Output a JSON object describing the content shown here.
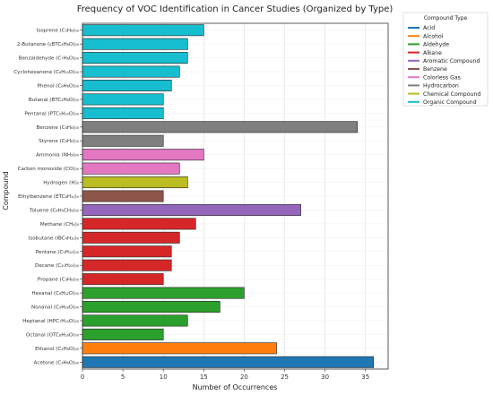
{
  "chart_data": {
    "type": "bar",
    "orientation": "horizontal",
    "title": "Frequency of VOC Identification in Cancer Studies (Organized by Type)",
    "xlabel": "Number of Occurrences",
    "ylabel": "Compound",
    "xlim": [
      0,
      37.8
    ],
    "xticks": [
      "0",
      "5",
      "10",
      "15",
      "20",
      "25",
      "30",
      "35"
    ],
    "grid": true,
    "legend_title": "Compound Type",
    "legend_position": "top-right",
    "legend": [
      {
        "name": "Acid",
        "color": "#1f77b4"
      },
      {
        "name": "Alcohol",
        "color": "#ff7f0e"
      },
      {
        "name": "Aldehyde",
        "color": "#2ca02c"
      },
      {
        "name": "Alkane",
        "color": "#d62728"
      },
      {
        "name": "Aromatic Compound",
        "color": "#9467bd"
      },
      {
        "name": "Benzene",
        "color": "#8c564b"
      },
      {
        "name": "Colorless Gas",
        "color": "#e377c2"
      },
      {
        "name": "Hydrocarbon",
        "color": "#7f7f7f"
      },
      {
        "name": "Chemical Compound",
        "color": "#bcbd22"
      },
      {
        "name": "Organic Compound",
        "color": "#17becf"
      }
    ],
    "categories": [
      "Isoprene (C₅H₈)₀₀",
      "2-Butanone (₂BTC₄H₈O)₀₀",
      "Benzaldehyde (C₇H₆O)₀₀",
      "Cyclohexanone (C₆H₁₀O)₀₀",
      "Phenol (C₆H₆O)₀₀",
      "Butanal (BTC₄H₈O)₀₀",
      "Pentanal (PTC₅H₁₀O)₀₀",
      "Benzene (C₆H₆)₀₀",
      "Styrene (C₈H₈)₀₀",
      "Ammonia (NH₃)₀₀",
      "Carbon monoxide (CO)₀₀",
      "Hydrogen (H)₂",
      "Ethylbenzene (ETC₈H₁₀)₀",
      "Toluene (C₆H₅CH₃)₀₀",
      "Methane (CH₄)₀",
      "Isobutane (IBC₄H₁₀)₀",
      "Pentane (C₅H₁₂)₀₀",
      "Decane (C₁₀H₂₂)₀₀",
      "Propane (C₃H₈)₀₀",
      "Hexanal (C₆H₁₂O)₀₀",
      "Nonanal (C₉H₁₈O)₀₀",
      "Heptanal (HPC₇H₁₄O)₀₀",
      "Octanal (OTC₈H₁₆O)₀₀",
      "Ethanol (C₂H₆O)₀₀",
      "Acetone (C₃H₆O)₀₀"
    ],
    "values": [
      15,
      13,
      13,
      12,
      11,
      10,
      10,
      34,
      10,
      15,
      12,
      13,
      10,
      27,
      14,
      12,
      11,
      11,
      10,
      20,
      17,
      13,
      10,
      24,
      36
    ],
    "types": [
      "Organic Compound",
      "Organic Compound",
      "Organic Compound",
      "Organic Compound",
      "Organic Compound",
      "Organic Compound",
      "Organic Compound",
      "Hydrocarbon",
      "Hydrocarbon",
      "Colorless Gas",
      "Colorless Gas",
      "Chemical Compound",
      "Benzene",
      "Aromatic Compound",
      "Alkane",
      "Alkane",
      "Alkane",
      "Alkane",
      "Alkane",
      "Aldehyde",
      "Aldehyde",
      "Aldehyde",
      "Aldehyde",
      "Alcohol",
      "Acid"
    ]
  }
}
